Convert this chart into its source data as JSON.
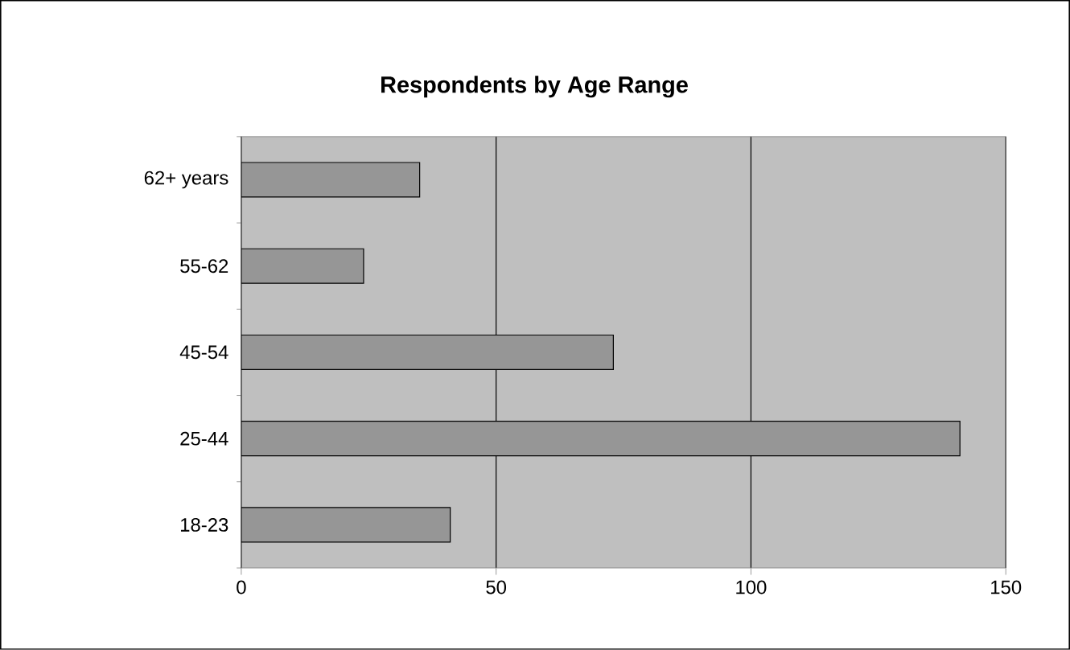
{
  "chart_data": {
    "type": "bar",
    "orientation": "horizontal",
    "title": "Respondents by Age Range",
    "categories": [
      "62+ years",
      "55-62",
      "45-54",
      "25-44",
      "18-23"
    ],
    "values": [
      35,
      24,
      73,
      141,
      41
    ],
    "color": "#969696",
    "xlim": [
      0,
      150
    ],
    "xticks": [
      0,
      50,
      100,
      150
    ],
    "grid": "x"
  }
}
